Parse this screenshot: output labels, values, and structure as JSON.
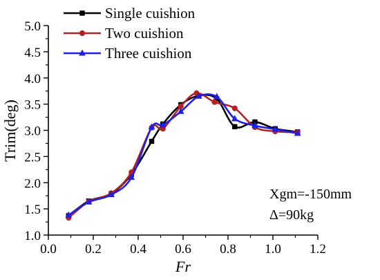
{
  "chart_data": {
    "type": "line",
    "xlabel": "Fr",
    "ylabel": "Trim(deg)",
    "xlim": [
      0.0,
      1.2
    ],
    "ylim": [
      1.0,
      5.0
    ],
    "x_ticks": [
      "0.0",
      "0.2",
      "0.4",
      "0.6",
      "0.8",
      "1.0",
      "1.2"
    ],
    "y_ticks": [
      "1.0",
      "1.5",
      "2.0",
      "2.5",
      "3.0",
      "3.5",
      "4.0",
      "4.5",
      "5.0"
    ],
    "grid": false,
    "legend_position": "top-left",
    "annotations": [
      "Xgm=-150mm",
      "Δ=90kg"
    ],
    "series": [
      {
        "name": "Single cuishion",
        "color": "#000000",
        "marker": "square",
        "x": [
          0.09,
          0.18,
          0.28,
          0.37,
          0.46,
          0.51,
          0.59,
          0.67,
          0.75,
          0.83,
          0.92,
          1.01,
          1.11
        ],
        "y": [
          1.37,
          1.65,
          1.79,
          2.16,
          2.79,
          3.12,
          3.49,
          3.66,
          3.6,
          3.07,
          3.16,
          3.03,
          2.97
        ]
      },
      {
        "name": "Two cuishion",
        "color": "#b22222",
        "marker": "circle",
        "x": [
          0.09,
          0.18,
          0.28,
          0.37,
          0.46,
          0.51,
          0.59,
          0.66,
          0.74,
          0.83,
          0.92,
          1.01,
          1.11
        ],
        "y": [
          1.33,
          1.64,
          1.8,
          2.2,
          3.05,
          3.03,
          3.46,
          3.71,
          3.54,
          3.42,
          3.06,
          2.98,
          2.96
        ]
      },
      {
        "name": "Three cuishion",
        "color": "#1f1fe6",
        "marker": "triangle",
        "x": [
          0.09,
          0.18,
          0.28,
          0.37,
          0.46,
          0.51,
          0.59,
          0.67,
          0.75,
          0.83,
          0.92,
          1.01,
          1.11
        ],
        "y": [
          1.38,
          1.63,
          1.77,
          2.1,
          3.06,
          3.1,
          3.36,
          3.65,
          3.64,
          3.22,
          3.09,
          3.02,
          2.94
        ]
      }
    ]
  },
  "colors": {
    "axis": "#000000",
    "background": "#ffffff"
  }
}
